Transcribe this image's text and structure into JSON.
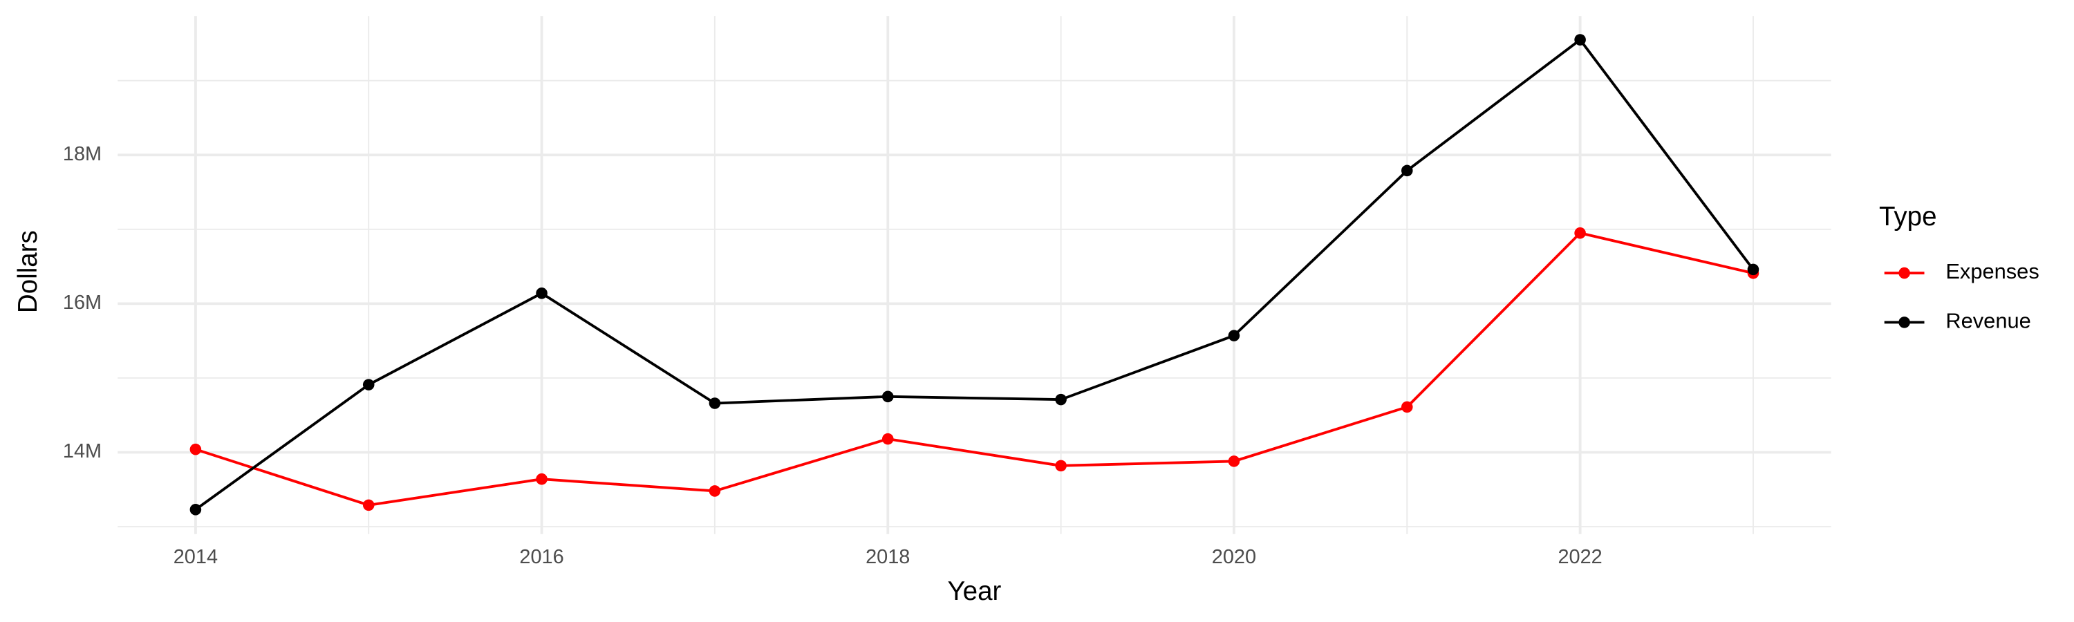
{
  "chart_data": {
    "type": "line",
    "x_label": "Year",
    "y_label": "Dollars",
    "legend_title": "Type",
    "legend_position": "right",
    "grid": true,
    "x": [
      2014,
      2015,
      2016,
      2017,
      2018,
      2019,
      2020,
      2021,
      2022,
      2023
    ],
    "series": [
      {
        "name": "Expenses",
        "color": "#ff0000",
        "values": [
          14040000,
          13290000,
          13640000,
          13480000,
          14180000,
          13820000,
          13880000,
          14610000,
          16950000,
          16410000
        ]
      },
      {
        "name": "Revenue",
        "color": "#000000",
        "values": [
          13230000,
          14910000,
          16140000,
          14660000,
          14750000,
          14710000,
          15570000,
          17790000,
          19550000,
          16460000
        ]
      }
    ],
    "xlim": [
      2013.55,
      2023.45
    ],
    "xticks": [
      2014,
      2016,
      2018,
      2020,
      2022
    ],
    "ylim": [
      12900000,
      19870000
    ],
    "yticks": [
      {
        "value": 14000000,
        "label": "14M"
      },
      {
        "value": 16000000,
        "label": "16M"
      },
      {
        "value": 18000000,
        "label": "18M"
      }
    ]
  }
}
